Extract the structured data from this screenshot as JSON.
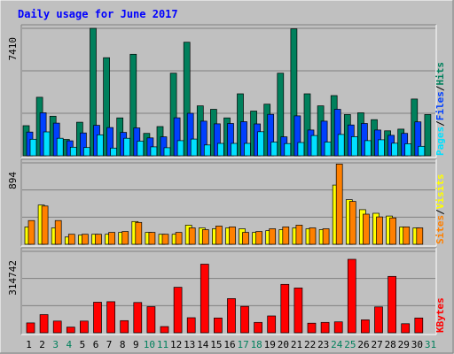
{
  "colors": {
    "background": "#C0C0C0",
    "title": "#0000FF",
    "hits": "#00805C",
    "files": "#0040FF",
    "pages": "#00E0FF",
    "visits": "#FFFF00",
    "sites": "#FF8000",
    "kbytes": "#FF0000",
    "weekend": "#00805C",
    "weekday": "#000000"
  },
  "chart_data": {
    "type": "bar",
    "title": "Daily usage for June 2017",
    "categories": [
      "1",
      "2",
      "3",
      "4",
      "5",
      "6",
      "7",
      "8",
      "9",
      "10",
      "11",
      "12",
      "13",
      "14",
      "15",
      "16",
      "17",
      "18",
      "19",
      "20",
      "21",
      "22",
      "23",
      "24",
      "25",
      "26",
      "27",
      "28",
      "29",
      "30",
      "31"
    ],
    "weekend_days": [
      "3",
      "4",
      "10",
      "11",
      "17",
      "18",
      "24",
      "25",
      "31"
    ],
    "panels": [
      {
        "name": "hits-files-pages",
        "ymax_label": "7410",
        "ymax": 7410,
        "legend": [
          "Pages",
          "/",
          "Files",
          "/",
          "Hits"
        ],
        "legend_colors": [
          "pages",
          "weekday",
          "files",
          "weekday",
          "hits"
        ],
        "series": [
          {
            "name": "Hits",
            "color": "hits",
            "values": [
              1750,
              3400,
              2300,
              950,
              1950,
              7410,
              5700,
              2200,
              5900,
              1300,
              1700,
              4800,
              6600,
              2900,
              2700,
              2200,
              3600,
              2600,
              3000,
              4800,
              7380,
              3600,
              2900,
              3500,
              2400,
              2500,
              2100,
              1450,
              1550,
              3300,
              2400
            ]
          },
          {
            "name": "Files",
            "color": "files",
            "values": [
              1380,
              2500,
              1900,
              870,
              1330,
              1770,
              1640,
              1360,
              1620,
              1040,
              1100,
              2210,
              2470,
              2010,
              1860,
              1880,
              1980,
              1850,
              2410,
              1100,
              2320,
              1500,
              2010,
              2700,
              1790,
              1880,
              1500,
              1190,
              1300,
              1970,
              null
            ]
          },
          {
            "name": "Pages",
            "color": "pages",
            "values": [
              960,
              1390,
              1020,
              500,
              480,
              1220,
              450,
              1020,
              850,
              520,
              470,
              880,
              970,
              630,
              720,
              720,
              720,
              1400,
              800,
              710,
              770,
              1180,
              800,
              1240,
              1110,
              880,
              930,
              730,
              700,
              550,
              null
            ]
          }
        ]
      },
      {
        "name": "visits-sites",
        "ymax_label": "894",
        "ymax": 894,
        "legend": [
          "Sites",
          "/",
          "Visits"
        ],
        "legend_colors": [
          "sites",
          "weekday",
          "visits"
        ],
        "series": [
          {
            "name": "Visits",
            "color": "visits",
            "values": [
              190,
              430,
              180,
              80,
              100,
              110,
              110,
              130,
              250,
              130,
              110,
              110,
              210,
              180,
              170,
              180,
              170,
              130,
              150,
              160,
              180,
              170,
              160,
              650,
              490,
              380,
              340,
              310,
              190,
              180,
              null
            ]
          },
          {
            "name": "Sites",
            "color": "sites",
            "values": [
              260,
              420,
              260,
              110,
              110,
              110,
              130,
              140,
              240,
              130,
              110,
              130,
              180,
              160,
              200,
              190,
              130,
              140,
              170,
              190,
              210,
              180,
              170,
              880,
              470,
              330,
              300,
              290,
              190,
              180,
              null
            ]
          }
        ]
      },
      {
        "name": "kbytes",
        "ymax_label": "314742",
        "ymax": 314742,
        "legend": [
          "KBytes"
        ],
        "legend_colors": [
          "kbytes"
        ],
        "series": [
          {
            "name": "KBytes",
            "color": "kbytes",
            "values": [
              38000,
              70000,
              45000,
              22000,
              45000,
              118000,
              120000,
              47000,
              117000,
              101000,
              24000,
              176000,
              58000,
              265000,
              57000,
              132000,
              102000,
              40000,
              65000,
              187000,
              173000,
              37000,
              40000,
              42000,
              284000,
              50000,
              100000,
              218000,
              35000,
              57000,
              null
            ]
          }
        ]
      }
    ]
  }
}
